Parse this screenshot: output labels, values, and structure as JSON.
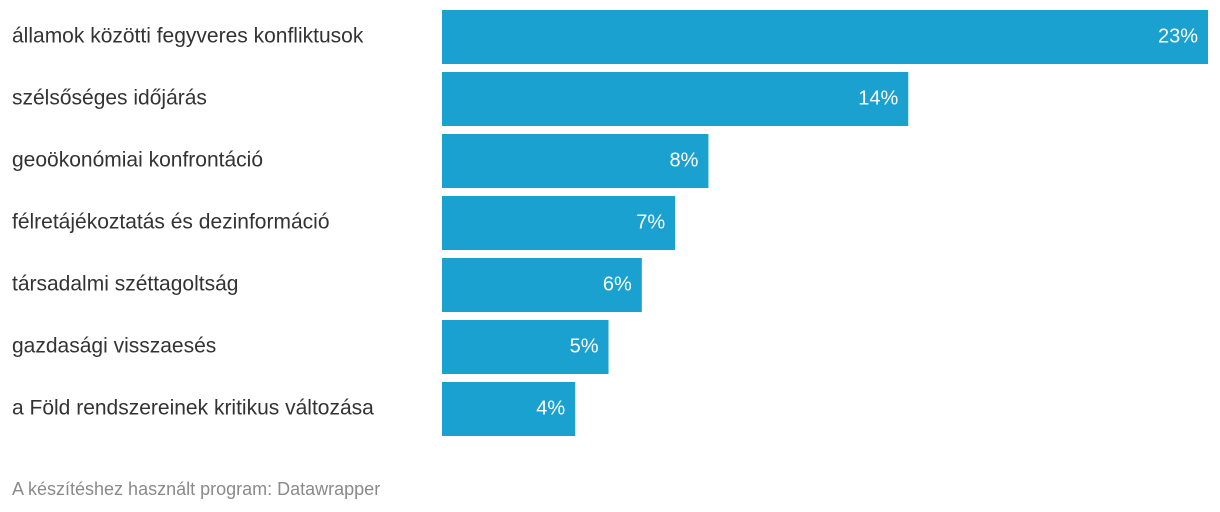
{
  "chart_data": {
    "type": "bar",
    "orientation": "horizontal",
    "categories": [
      "államok közötti fegyveres konfliktusok",
      "szélsőséges időjárás",
      "geoökonómiai konfrontáció",
      "félretájékoztatás és dezinformáció",
      "társadalmi széttagoltság",
      "gazdasági visszaesés",
      "a Föld rendszereinek kritikus változása"
    ],
    "values": [
      23,
      14,
      8,
      7,
      6,
      5,
      4
    ],
    "value_labels": [
      "23%",
      "14%",
      "8%",
      "7%",
      "6%",
      "5%",
      "4%"
    ],
    "color": "#1ba1cf",
    "footer": "A készítéshez használt program: Datawrapper"
  }
}
